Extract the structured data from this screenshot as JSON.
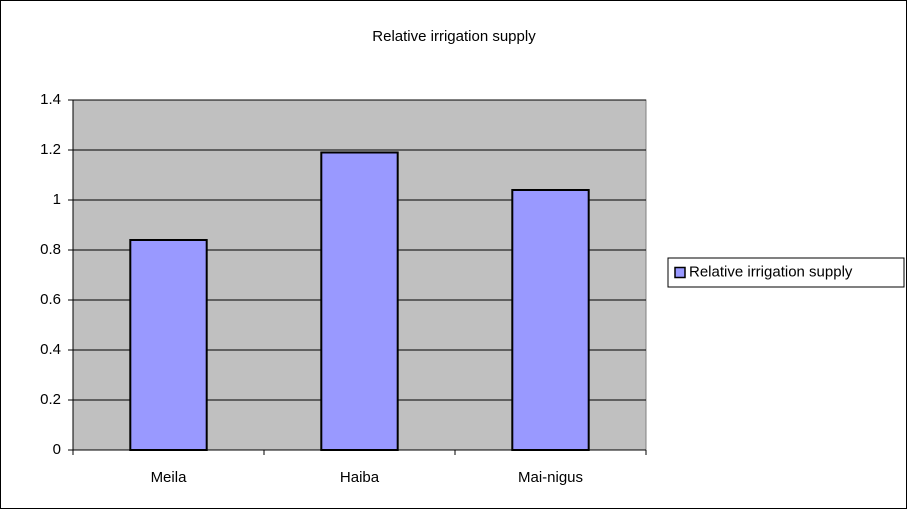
{
  "chart_data": {
    "type": "bar",
    "title": "Relative irrigation supply",
    "categories": [
      "Meila",
      "Haiba",
      "Mai-nigus"
    ],
    "series": [
      {
        "name": "Relative irrigation supply",
        "color": "#9999ff",
        "values": [
          0.84,
          1.19,
          1.04
        ]
      }
    ],
    "ylim": [
      0,
      1.4
    ],
    "yticks": [
      0,
      0.2,
      0.4,
      0.6,
      0.8,
      1,
      1.2,
      1.4
    ],
    "grid": true,
    "legend": "right",
    "plot_background": "#c0c0c0"
  }
}
